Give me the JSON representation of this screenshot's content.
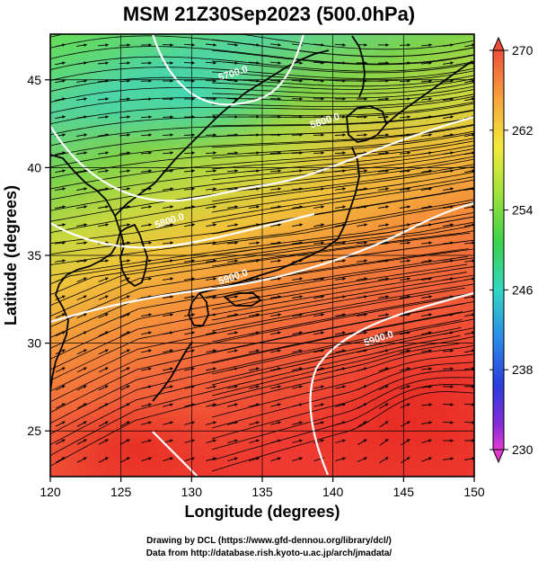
{
  "title": "MSM 21Z30Sep2023 (500.0hPa)",
  "map": {
    "x_label": "Longitude (degrees)",
    "y_label": "Latitude  (degrees)",
    "x_ticks": [
      "120",
      "125",
      "130",
      "135",
      "140",
      "145",
      "150"
    ],
    "y_ticks": [
      "25",
      "30",
      "35",
      "40",
      "45"
    ],
    "lon_range": [
      120,
      150
    ],
    "lat_range": [
      22.4,
      47.6
    ],
    "contours": [
      {
        "label": "5700.0",
        "lon": 133.0,
        "lat": 45.2
      },
      {
        "label": "5800.0",
        "lon": 139.5,
        "lat": 42.5
      },
      {
        "label": "5800.0",
        "lon": 128.5,
        "lat": 36.8
      },
      {
        "label": "5900.0",
        "lon": 133.0,
        "lat": 33.6
      },
      {
        "label": "5900.0",
        "lon": 143.3,
        "lat": 30.1
      }
    ]
  },
  "colorbar": {
    "labels": [
      "270",
      "262",
      "254",
      "246",
      "238",
      "230"
    ],
    "min": 230,
    "max": 270
  },
  "credits": {
    "line1": "Drawing by DCL (https://www.gfd-dennou.org/library/dcl/)",
    "line2": "Data from http://database.rish.kyoto-u.ac.jp/arch/jmadata/"
  }
}
